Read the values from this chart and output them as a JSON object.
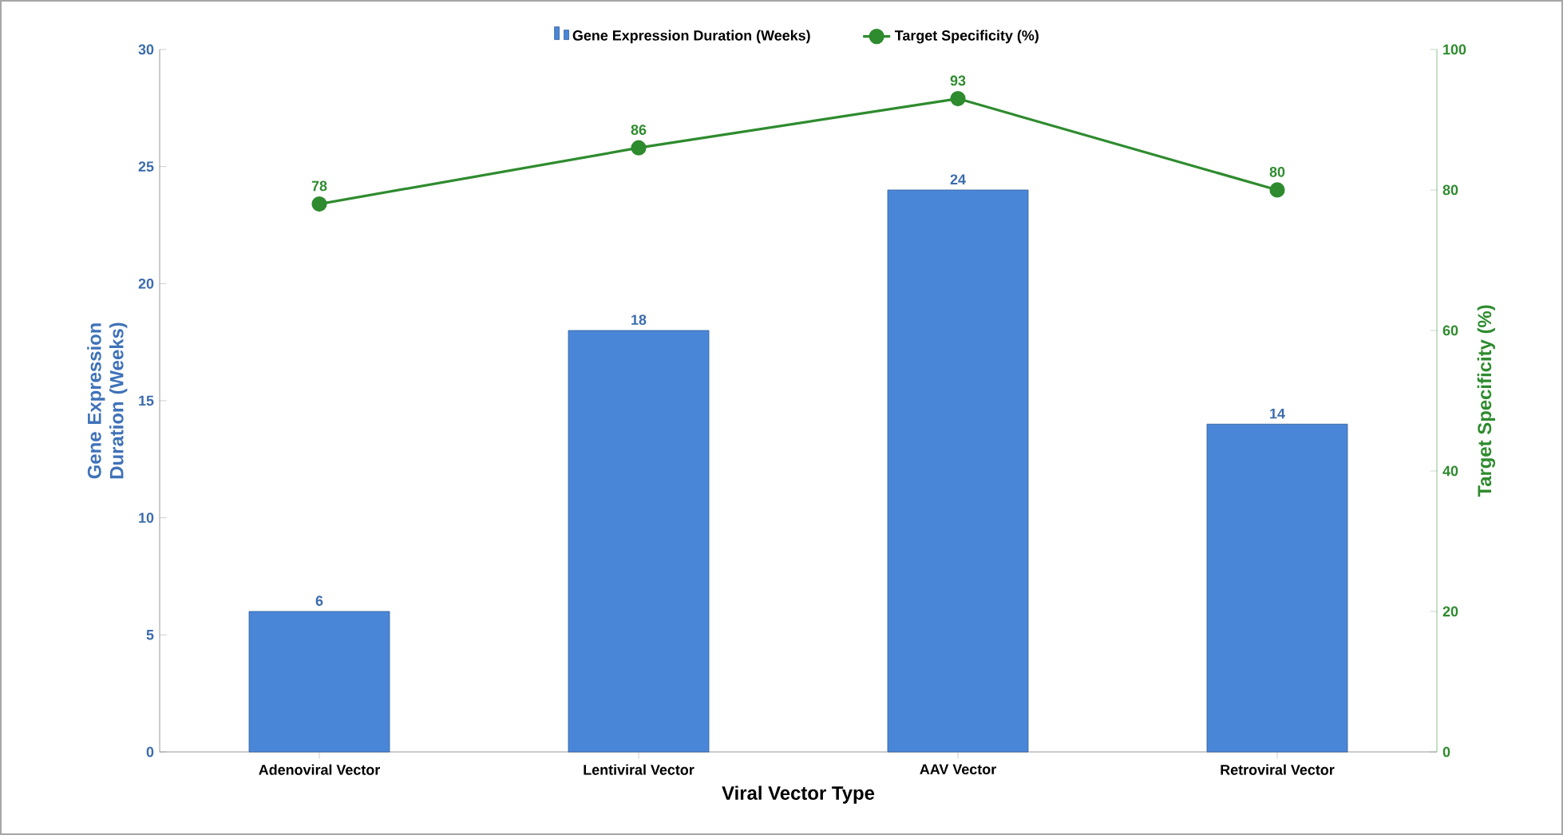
{
  "chart_data": {
    "type": "bar",
    "xlabel": "Viral Vector Type",
    "ylabel": "Gene Expression Duration (Weeks)",
    "y2label": "Target Specificity (%)",
    "categories": [
      "Adenoviral Vector",
      "Lentiviral Vector",
      "AAV Vector",
      "Retroviral Vector"
    ],
    "series": [
      {
        "name": "Gene Expression Duration (Weeks)",
        "color": "#4a86d8",
        "values": [
          6,
          18,
          24,
          14
        ]
      },
      {
        "name": "Target Specificity (%)",
        "type": "line",
        "axis": "y2",
        "color": "#2e8b2e",
        "values": [
          78,
          86,
          93,
          80
        ]
      }
    ],
    "ylim": [
      0,
      30
    ],
    "yticks": [
      0,
      5,
      10,
      15,
      20,
      25,
      30
    ],
    "y2lim": [
      0,
      100
    ],
    "y2ticks": [
      0,
      20,
      40,
      60,
      80,
      100
    ],
    "data_labels": true,
    "legend": "top",
    "marker": "circle",
    "line_style": "solid",
    "grid": false
  }
}
